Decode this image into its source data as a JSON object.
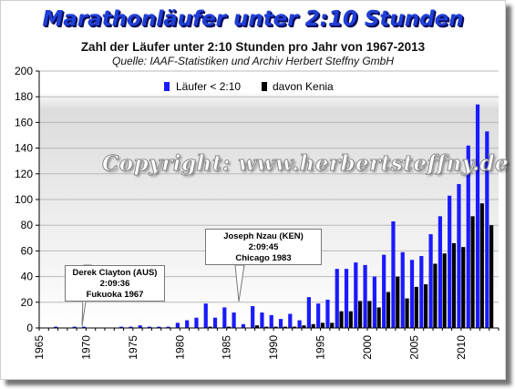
{
  "chart_data": {
    "type": "bar",
    "title": "Marathonläufer unter 2:10 Stunden",
    "subtitle": "Zahl der Läufer unter 2:10 Stunden pro Jahr von 1967-2013",
    "source": "Quelle: IAAF-Statistiken und Archiv Herbert Steffny GmbH",
    "watermark": "Copyright: www.herbertsteffny.de",
    "xlim": [
      1965,
      2014
    ],
    "x_ticks": [
      "1965",
      "1970",
      "1975",
      "1980",
      "1985",
      "1990",
      "1995",
      "2000",
      "2005",
      "2010"
    ],
    "ylim": [
      0,
      200
    ],
    "y_ticks": [
      "0",
      "20",
      "40",
      "60",
      "80",
      "100",
      "120",
      "140",
      "160",
      "180",
      "200"
    ],
    "legend_position": "top-center",
    "years": [
      1967,
      1968,
      1969,
      1970,
      1971,
      1972,
      1973,
      1974,
      1975,
      1976,
      1977,
      1978,
      1979,
      1980,
      1981,
      1982,
      1983,
      1984,
      1985,
      1986,
      1987,
      1988,
      1989,
      1990,
      1991,
      1992,
      1993,
      1994,
      1995,
      1996,
      1997,
      1998,
      1999,
      2000,
      2001,
      2002,
      2003,
      2004,
      2005,
      2006,
      2007,
      2008,
      2009,
      2010,
      2011,
      2012,
      2013
    ],
    "series": [
      {
        "name": "Läufer < 2:10",
        "color": "#1a1aff",
        "values": [
          1,
          0,
          1,
          1,
          0,
          0,
          0,
          1,
          1,
          2,
          1,
          1,
          1,
          4,
          6,
          8,
          19,
          8,
          16,
          12,
          3,
          17,
          12,
          10,
          7,
          11,
          6,
          24,
          19,
          22,
          46,
          46,
          51,
          49,
          40,
          57,
          83,
          59,
          53,
          56,
          73,
          87,
          103,
          112,
          142,
          174,
          153
        ]
      },
      {
        "name": "davon Kenia",
        "color": "#000000",
        "values": [
          0,
          0,
          0,
          0,
          0,
          0,
          0,
          0,
          0,
          0,
          0,
          0,
          0,
          0,
          0,
          0,
          1,
          0,
          1,
          0,
          0,
          2,
          1,
          1,
          1,
          1,
          2,
          3,
          4,
          4,
          13,
          13,
          21,
          21,
          16,
          28,
          40,
          23,
          32,
          34,
          50,
          58,
          66,
          63,
          87,
          97,
          80
        ]
      }
    ]
  },
  "annotations": [
    {
      "lines": [
        "Derek Clayton (AUS)",
        "2:09:36",
        "Fukuoka  1967"
      ]
    },
    {
      "lines": [
        "Joseph Nzau (KEN)",
        "2:09:45",
        "Chicago  1983"
      ]
    }
  ]
}
